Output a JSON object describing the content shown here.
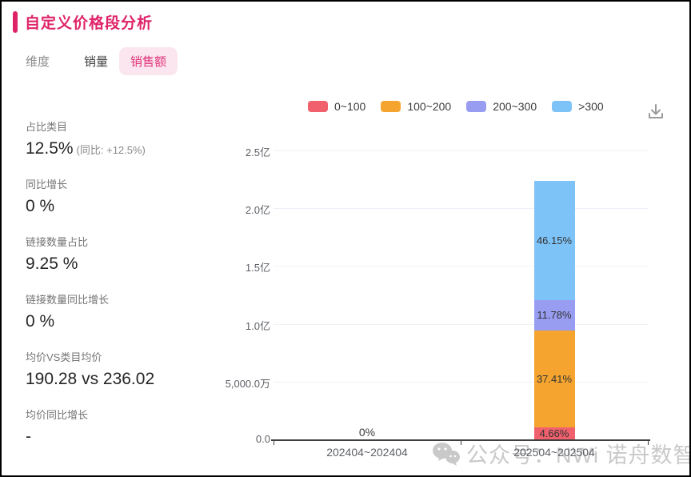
{
  "page": {
    "title": "自定义价格段分析",
    "accent_color": "#df2368"
  },
  "tabs": [
    {
      "label": "维度",
      "active": false
    },
    {
      "label": "销量",
      "active": false
    },
    {
      "label": "销售额",
      "active": true
    }
  ],
  "stats": {
    "items": [
      {
        "label": "占比类目",
        "value": "12.5%",
        "suffix": "(同比:  +12.5%)"
      },
      {
        "label": "同比增长",
        "value": "0 %",
        "suffix": ""
      },
      {
        "label": "链接数量占比",
        "value": "9.25 %",
        "suffix": ""
      },
      {
        "label": "链接数量同比增长",
        "value": "0 %",
        "suffix": ""
      },
      {
        "label": "均价VS类目均价",
        "value": "190.28 vs 236.02",
        "suffix": ""
      },
      {
        "label": "均价同比增长",
        "value": "-",
        "suffix": ""
      }
    ]
  },
  "toolbar": {
    "download_icon": "download-icon",
    "download_icon_color": "#9b9b9b"
  },
  "chart_data": {
    "type": "bar",
    "stacked": true,
    "title": "",
    "xlabel": "",
    "ylabel": "",
    "grid": true,
    "legend_position": "top",
    "categories": [
      "202404~202404",
      "202504~202504"
    ],
    "series": [
      {
        "name": "0~100",
        "color": "#f0606d",
        "pct": [
          0,
          4.66
        ]
      },
      {
        "name": "100~200",
        "color": "#f5a52f",
        "pct": [
          0,
          37.41
        ]
      },
      {
        "name": "200~300",
        "color": "#989df1",
        "pct": [
          0,
          11.78
        ]
      },
      {
        "name": ">300",
        "color": "#7dc3f8",
        "pct": [
          0,
          46.15
        ]
      }
    ],
    "zero_bar_label": "0%",
    "y_ticks": [
      "0.0",
      "5,000.0万",
      "1.0亿",
      "1.5亿",
      "2.0亿",
      "2.5亿"
    ],
    "y_max_yi": 2.5,
    "bar_total_estimate_yi": 2.24
  },
  "watermark": {
    "icon": "wechat-icon",
    "text": "公众号：NWi 诺舟数智",
    "color": "#c9c9c9"
  }
}
